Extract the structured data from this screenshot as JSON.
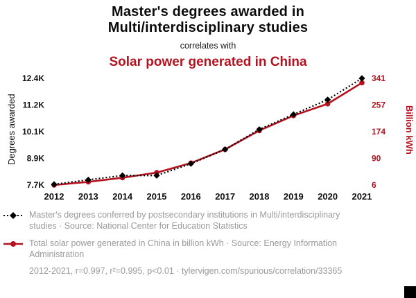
{
  "header": {
    "title": "Master's degrees awarded in\nMulti/interdisciplinary studies",
    "subtitle": "correlates with",
    "secondary_title": "Solar power generated in China"
  },
  "colors": {
    "accent_red": "#b5121f",
    "series_black": "#000000",
    "legend_gray": "#9a9a9a"
  },
  "chart_data": {
    "type": "line",
    "x": [
      2012,
      2013,
      2014,
      2015,
      2016,
      2017,
      2018,
      2019,
      2020,
      2021
    ],
    "series": [
      {
        "name": "Master's degrees conferred in Multi/interdisciplinary studies",
        "axis": "left",
        "color": "#000000",
        "marker": "diamond",
        "dash": "2 3",
        "values": [
          7730,
          7930,
          8120,
          8120,
          8640,
          9270,
          10150,
          10810,
          11460,
          12400
        ]
      },
      {
        "name": "Total solar power generated in China (billion kWh)",
        "axis": "right",
        "color": "#b5121f",
        "marker": "circle",
        "dash": null,
        "values": [
          6,
          16,
          29,
          45,
          75,
          118,
          177,
          224,
          261,
          327
        ]
      }
    ],
    "left_axis": {
      "label": "Degrees awarded",
      "ticks": [
        "7.7K",
        "8.9K",
        "10.1K",
        "11.2K",
        "12.4K"
      ],
      "range": [
        7700,
        12400
      ]
    },
    "right_axis": {
      "label": "Billion kWh",
      "ticks": [
        "6",
        "90",
        "174",
        "257",
        "341"
      ],
      "range": [
        6,
        341
      ]
    },
    "grid": false,
    "legend_position": "bottom"
  },
  "legend": {
    "items": [
      {
        "text": "Master's degrees conferred by postsecondary institutions in Multi/interdisciplinary studies · Source: National Center for Education Statistics"
      },
      {
        "text": "Total solar power generated in China in billion kWh · Source: Energy Information Administration"
      }
    ],
    "footer": "2012-2021, r=0.997, r²=0.995, p<0.01 · tylervigen.com/spurious/correlation/33365"
  }
}
